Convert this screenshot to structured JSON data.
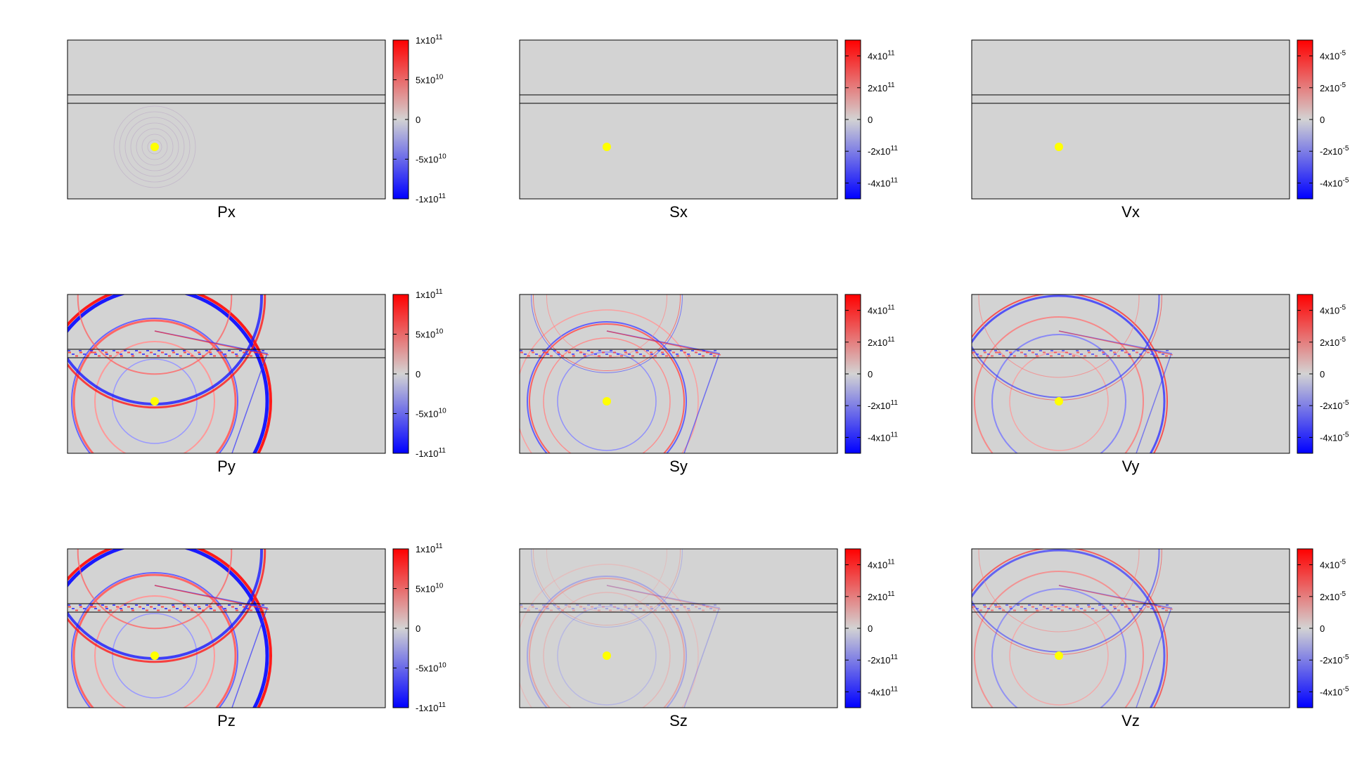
{
  "chart_data": [
    {
      "type": "heatmap",
      "title": "Px",
      "colorbar": {
        "colors": {
          "max": "#ff0000",
          "mid": "#d3d3d3",
          "min": "#0000ff"
        },
        "range": [
          -100000000000.0,
          100000000000.0
        ],
        "ticks": [
          {
            "v": 100000000000.0,
            "base": "1x10",
            "exp": "11"
          },
          {
            "v": 50000000000.0,
            "base": "5x10",
            "exp": "10"
          },
          {
            "v": 0,
            "base": "0",
            "exp": ""
          },
          {
            "v": -50000000000.0,
            "base": "-5x10",
            "exp": "10"
          },
          {
            "v": -100000000000.0,
            "base": "-1x10",
            "exp": "11"
          }
        ]
      }
    },
    {
      "type": "heatmap",
      "title": "Sx",
      "colorbar": {
        "colors": {
          "max": "#ff0000",
          "mid": "#d3d3d3",
          "min": "#0000ff"
        },
        "range": [
          -500000000000.0,
          500000000000.0
        ],
        "ticks": [
          {
            "v": 400000000000.0,
            "base": "4x10",
            "exp": "11"
          },
          {
            "v": 200000000000.0,
            "base": "2x10",
            "exp": "11"
          },
          {
            "v": 0,
            "base": "0",
            "exp": ""
          },
          {
            "v": -200000000000.0,
            "base": "-2x10",
            "exp": "11"
          },
          {
            "v": -400000000000.0,
            "base": "-4x10",
            "exp": "11"
          }
        ]
      }
    },
    {
      "type": "heatmap",
      "title": "Vx",
      "colorbar": {
        "colors": {
          "max": "#ff0000",
          "mid": "#d3d3d3",
          "min": "#0000ff"
        },
        "range": [
          -5e-05,
          5e-05
        ],
        "ticks": [
          {
            "v": 4e-05,
            "base": "4x10",
            "exp": "-5"
          },
          {
            "v": 2e-05,
            "base": "2x10",
            "exp": "-5"
          },
          {
            "v": 0,
            "base": "0",
            "exp": ""
          },
          {
            "v": -2e-05,
            "base": "-2x10",
            "exp": "-5"
          },
          {
            "v": -4e-05,
            "base": "-4x10",
            "exp": "-5"
          }
        ]
      }
    },
    {
      "type": "heatmap",
      "title": "Py",
      "colorbar": {
        "colors": {
          "max": "#ff0000",
          "mid": "#d3d3d3",
          "min": "#0000ff"
        },
        "range": [
          -100000000000.0,
          100000000000.0
        ],
        "ticks": [
          {
            "v": 100000000000.0,
            "base": "1x10",
            "exp": "11"
          },
          {
            "v": 50000000000.0,
            "base": "5x10",
            "exp": "10"
          },
          {
            "v": 0,
            "base": "0",
            "exp": ""
          },
          {
            "v": -50000000000.0,
            "base": "-5x10",
            "exp": "10"
          },
          {
            "v": -100000000000.0,
            "base": "-1x10",
            "exp": "11"
          }
        ]
      }
    },
    {
      "type": "heatmap",
      "title": "Sy",
      "colorbar": {
        "colors": {
          "max": "#ff0000",
          "mid": "#d3d3d3",
          "min": "#0000ff"
        },
        "range": [
          -500000000000.0,
          500000000000.0
        ],
        "ticks": [
          {
            "v": 400000000000.0,
            "base": "4x10",
            "exp": "11"
          },
          {
            "v": 200000000000.0,
            "base": "2x10",
            "exp": "11"
          },
          {
            "v": 0,
            "base": "0",
            "exp": ""
          },
          {
            "v": -200000000000.0,
            "base": "-2x10",
            "exp": "11"
          },
          {
            "v": -400000000000.0,
            "base": "-4x10",
            "exp": "11"
          }
        ]
      }
    },
    {
      "type": "heatmap",
      "title": "Vy",
      "colorbar": {
        "colors": {
          "max": "#ff0000",
          "mid": "#d3d3d3",
          "min": "#0000ff"
        },
        "range": [
          -5e-05,
          5e-05
        ],
        "ticks": [
          {
            "v": 4e-05,
            "base": "4x10",
            "exp": "-5"
          },
          {
            "v": 2e-05,
            "base": "2x10",
            "exp": "-5"
          },
          {
            "v": 0,
            "base": "0",
            "exp": ""
          },
          {
            "v": -2e-05,
            "base": "-2x10",
            "exp": "-5"
          },
          {
            "v": -4e-05,
            "base": "-4x10",
            "exp": "-5"
          }
        ]
      }
    },
    {
      "type": "heatmap",
      "title": "Pz",
      "colorbar": {
        "colors": {
          "max": "#ff0000",
          "mid": "#d3d3d3",
          "min": "#0000ff"
        },
        "range": [
          -100000000000.0,
          100000000000.0
        ],
        "ticks": [
          {
            "v": 100000000000.0,
            "base": "1x10",
            "exp": "11"
          },
          {
            "v": 50000000000.0,
            "base": "5x10",
            "exp": "10"
          },
          {
            "v": 0,
            "base": "0",
            "exp": ""
          },
          {
            "v": -50000000000.0,
            "base": "-5x10",
            "exp": "10"
          },
          {
            "v": -100000000000.0,
            "base": "-1x10",
            "exp": "11"
          }
        ]
      }
    },
    {
      "type": "heatmap",
      "title": "Sz",
      "colorbar": {
        "colors": {
          "max": "#ff0000",
          "mid": "#d3d3d3",
          "min": "#0000ff"
        },
        "range": [
          -500000000000.0,
          500000000000.0
        ],
        "ticks": [
          {
            "v": 400000000000.0,
            "base": "4x10",
            "exp": "11"
          },
          {
            "v": 200000000000.0,
            "base": "2x10",
            "exp": "11"
          },
          {
            "v": 0,
            "base": "0",
            "exp": ""
          },
          {
            "v": -200000000000.0,
            "base": "-2x10",
            "exp": "11"
          },
          {
            "v": -400000000000.0,
            "base": "-4x10",
            "exp": "11"
          }
        ]
      }
    },
    {
      "type": "heatmap",
      "title": "Vz",
      "colorbar": {
        "colors": {
          "max": "#ff0000",
          "mid": "#d3d3d3",
          "min": "#0000ff"
        },
        "range": [
          -5e-05,
          5e-05
        ],
        "ticks": [
          {
            "v": 4e-05,
            "base": "4x10",
            "exp": "-5"
          },
          {
            "v": 2e-05,
            "base": "2x10",
            "exp": "-5"
          },
          {
            "v": 0,
            "base": "0",
            "exp": ""
          },
          {
            "v": -2e-05,
            "base": "-2x10",
            "exp": "-5"
          },
          {
            "v": -4e-05,
            "base": "-4x10",
            "exp": "-5"
          }
        ]
      }
    }
  ],
  "colors": {
    "background": "#d3d3d3",
    "source_marker": "#ffff00",
    "frame": "#000000"
  }
}
